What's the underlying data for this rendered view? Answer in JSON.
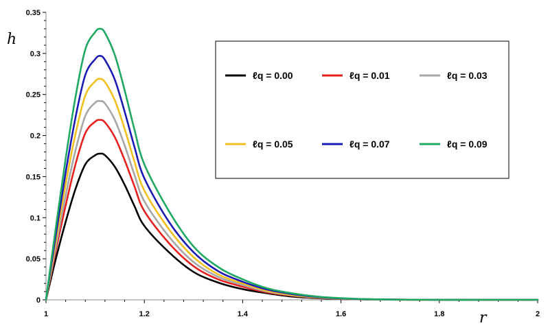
{
  "chart_data": {
    "type": "line",
    "xlabel": "r",
    "ylabel": "h",
    "xlim": [
      1,
      2
    ],
    "ylim": [
      0,
      0.35
    ],
    "x_ticks": [
      "1",
      "1.2",
      "1.4",
      "1.6",
      "1.8",
      "2"
    ],
    "y_ticks": [
      "0",
      "0.05",
      "0.1",
      "0.15",
      "0.2",
      "0.25",
      "0.3",
      "0.35"
    ],
    "grid": false,
    "legend_position": "top-right",
    "x": [
      1.0,
      1.02,
      1.04,
      1.06,
      1.08,
      1.1,
      1.11,
      1.12,
      1.14,
      1.16,
      1.18,
      1.2,
      1.25,
      1.3,
      1.35,
      1.4,
      1.45,
      1.5,
      1.55,
      1.6,
      1.65,
      1.7,
      1.8,
      1.9,
      2.0
    ],
    "series": [
      {
        "name": "ℓq = 0.00",
        "color": "#000000",
        "values": [
          0.0,
          0.05,
          0.095,
          0.135,
          0.165,
          0.176,
          0.178,
          0.176,
          0.162,
          0.14,
          0.114,
          0.09,
          0.058,
          0.034,
          0.021,
          0.013,
          0.008,
          0.004,
          0.002,
          0.001,
          0.0005,
          0.0002,
          0.0,
          0.0,
          0.0
        ]
      },
      {
        "name": "ℓq = 0.01",
        "color": "#e8201d",
        "values": [
          0.0,
          0.06,
          0.115,
          0.165,
          0.203,
          0.217,
          0.219,
          0.216,
          0.198,
          0.17,
          0.138,
          0.108,
          0.069,
          0.041,
          0.025,
          0.016,
          0.009,
          0.005,
          0.0025,
          0.0012,
          0.0006,
          0.0003,
          0.0,
          0.0,
          0.0
        ]
      },
      {
        "name": "ℓq = 0.03",
        "color": "#a6a6a6",
        "values": [
          0.0,
          0.065,
          0.127,
          0.182,
          0.224,
          0.24,
          0.242,
          0.239,
          0.219,
          0.188,
          0.152,
          0.12,
          0.077,
          0.046,
          0.028,
          0.018,
          0.01,
          0.0055,
          0.0028,
          0.0013,
          0.0006,
          0.0003,
          0.0,
          0.0,
          0.0
        ]
      },
      {
        "name": "ℓq = 0.05",
        "color": "#f2c01e",
        "values": [
          0.0,
          0.072,
          0.141,
          0.202,
          0.249,
          0.266,
          0.269,
          0.265,
          0.243,
          0.208,
          0.168,
          0.133,
          0.086,
          0.052,
          0.031,
          0.02,
          0.011,
          0.006,
          0.003,
          0.0015,
          0.0007,
          0.0003,
          0.0,
          0.0,
          0.0
        ]
      },
      {
        "name": "ℓq = 0.07",
        "color": "#1c1ab5",
        "values": [
          0.0,
          0.079,
          0.155,
          0.222,
          0.274,
          0.293,
          0.297,
          0.292,
          0.268,
          0.229,
          0.186,
          0.148,
          0.095,
          0.058,
          0.035,
          0.022,
          0.0125,
          0.007,
          0.0035,
          0.0017,
          0.0008,
          0.0004,
          0.0,
          0.0,
          0.0
        ]
      },
      {
        "name": "ℓq = 0.09",
        "color": "#1fa862",
        "values": [
          0.0,
          0.088,
          0.172,
          0.247,
          0.305,
          0.326,
          0.33,
          0.325,
          0.298,
          0.255,
          0.207,
          0.165,
          0.108,
          0.065,
          0.04,
          0.025,
          0.014,
          0.008,
          0.004,
          0.002,
          0.0009,
          0.0004,
          0.0,
          0.0,
          0.0
        ]
      }
    ]
  }
}
